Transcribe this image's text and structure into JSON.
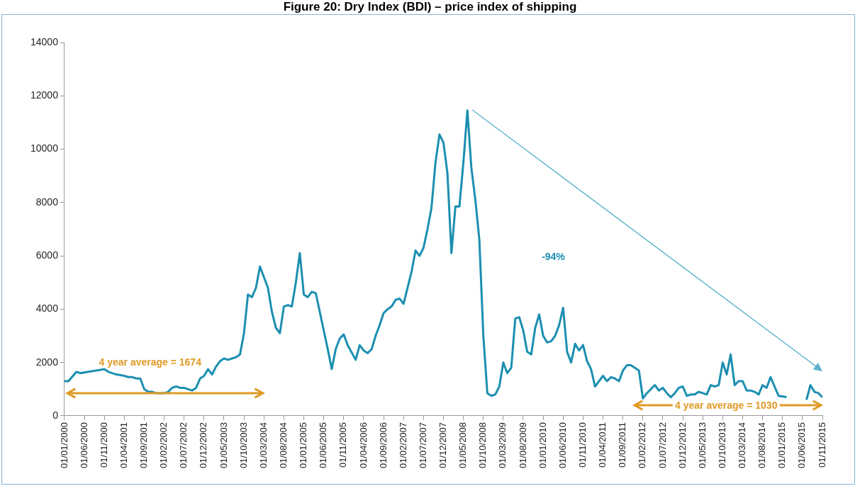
{
  "chart_data": {
    "type": "line",
    "title": "Figure 20: Dry Index (BDI) – price index of shipping",
    "x": [
      "2000-01",
      "2000-02",
      "2000-04",
      "2000-05",
      "2000-07",
      "2000-09",
      "2000-11",
      "2000-12",
      "2001-02",
      "2001-04",
      "2001-05",
      "2001-06",
      "2001-07",
      "2001-08",
      "2001-09",
      "2001-10",
      "2001-11",
      "2001-12",
      "2002-02",
      "2002-03",
      "2002-04",
      "2002-05",
      "2002-06",
      "2002-07",
      "2002-08",
      "2002-09",
      "2002-10",
      "2002-11",
      "2002-12",
      "2003-01",
      "2003-02",
      "2003-03",
      "2003-04",
      "2003-05",
      "2003-06",
      "2003-07",
      "2003-08",
      "2003-09",
      "2003-10",
      "2003-11",
      "2003-12",
      "2004-01",
      "2004-02",
      "2004-03",
      "2004-04",
      "2004-05",
      "2004-06",
      "2004-07",
      "2004-08",
      "2004-09",
      "2004-10",
      "2004-11",
      "2004-12",
      "2005-01",
      "2005-02",
      "2005-03",
      "2005-04",
      "2005-05",
      "2005-06",
      "2005-07",
      "2005-08",
      "2005-09",
      "2005-10",
      "2005-11",
      "2005-12",
      "2006-02",
      "2006-03",
      "2006-04",
      "2006-05",
      "2006-06",
      "2006-07",
      "2006-08",
      "2006-09",
      "2006-10",
      "2006-11",
      "2006-12",
      "2007-01",
      "2007-02",
      "2007-03",
      "2007-04",
      "2007-05",
      "2007-06",
      "2007-07",
      "2007-08",
      "2007-09",
      "2007-10",
      "2007-11",
      "2007-12",
      "2008-01",
      "2008-02",
      "2008-03",
      "2008-04",
      "2008-05",
      "2008-06",
      "2008-07",
      "2008-08",
      "2008-09",
      "2008-10",
      "2008-11",
      "2008-12",
      "2009-01",
      "2009-02",
      "2009-03",
      "2009-04",
      "2009-05",
      "2009-06",
      "2009-07",
      "2009-08",
      "2009-09",
      "2009-10",
      "2009-11",
      "2009-12",
      "2010-01",
      "2010-02",
      "2010-03",
      "2010-04",
      "2010-05",
      "2010-06",
      "2010-07",
      "2010-08",
      "2010-09",
      "2010-10",
      "2010-11",
      "2010-12",
      "2011-01",
      "2011-02",
      "2011-03",
      "2011-04",
      "2011-05",
      "2011-06",
      "2011-07",
      "2011-08",
      "2011-09",
      "2011-10",
      "2011-11",
      "2011-12",
      "2012-01",
      "2012-02",
      "2012-03",
      "2012-04",
      "2012-05",
      "2012-06",
      "2012-07",
      "2012-08",
      "2012-09",
      "2012-10",
      "2012-11",
      "2012-12",
      "2013-01",
      "2013-02",
      "2013-03",
      "2013-04",
      "2013-05",
      "2013-06",
      "2013-07",
      "2013-08",
      "2013-09",
      "2013-10",
      "2013-11",
      "2013-12",
      "2014-01",
      "2014-02",
      "2014-03",
      "2014-04",
      "2014-05",
      "2014-06",
      "2014-07",
      "2014-08",
      "2014-09",
      "2014-10",
      "2014-11",
      "2014-12",
      "2015-02",
      "2015-04",
      "2015-07",
      "2015-08",
      "2015-09",
      "2015-10",
      "2015-11"
    ],
    "series": [
      {
        "color": "#1b8fb0",
        "values": [
          1300,
          1300,
          1650,
          1600,
          1650,
          1700,
          1750,
          1650,
          1550,
          1500,
          1450,
          1450,
          1400,
          1400,
          1000,
          900,
          900,
          850,
          850,
          900,
          1050,
          1100,
          1050,
          1050,
          1000,
          950,
          1050,
          1400,
          1500,
          1750,
          1550,
          1850,
          2050,
          2150,
          2100,
          2150,
          2200,
          2300,
          3100,
          4550,
          4450,
          4800,
          5600,
          5200,
          4800,
          3900,
          3300,
          3100,
          4100,
          4150,
          4100,
          5000,
          6100,
          4550,
          4450,
          4650,
          4600,
          3900,
          3200,
          2500,
          1750,
          2500,
          2900,
          3050,
          2650,
          2100,
          2650,
          2450,
          2350,
          2500,
          3000,
          3400,
          3850,
          4000,
          4100,
          4350,
          4400,
          4200,
          4800,
          5400,
          6200,
          6000,
          6300,
          7000,
          7800,
          9500,
          10550,
          10250,
          9100,
          6100,
          7850,
          7850,
          9500,
          11450,
          9300,
          8100,
          6600,
          3000,
          850,
          750,
          800,
          1100,
          2000,
          1600,
          1800,
          3650,
          3700,
          3200,
          2400,
          2300,
          3300,
          3800,
          3000,
          2750,
          2800,
          3000,
          3400,
          4050,
          2400,
          2000,
          2700,
          2450,
          2650,
          2050,
          1750,
          1100,
          1300,
          1500,
          1300,
          1450,
          1400,
          1300,
          1700,
          1900,
          1900,
          1800,
          1700,
          650,
          850,
          1000,
          1150,
          950,
          1050,
          850,
          700,
          850,
          1050,
          1100,
          750,
          800,
          800,
          900,
          850,
          800,
          1150,
          1100,
          1150,
          2000,
          1550,
          2300,
          1150,
          1300,
          1300,
          950,
          950,
          900,
          800,
          1150,
          1050,
          1450,
          1100,
          750,
          700,
          null,
          600,
          1150,
          900,
          850,
          700
        ]
      }
    ],
    "xlim": [
      "2000-01",
      "2015-11"
    ],
    "xticks": [
      {
        "value": "2000-01",
        "label": "01/01/2000"
      },
      {
        "value": "2000-06",
        "label": "01/06/2000"
      },
      {
        "value": "2000-11",
        "label": "01/11/2000"
      },
      {
        "value": "2001-04",
        "label": "01/04/2001"
      },
      {
        "value": "2001-09",
        "label": "01/09/2001"
      },
      {
        "value": "2002-02",
        "label": "01/02/2002"
      },
      {
        "value": "2002-07",
        "label": "01/07/2002"
      },
      {
        "value": "2002-12",
        "label": "01/12/2002"
      },
      {
        "value": "2003-05",
        "label": "01/05/2003"
      },
      {
        "value": "2003-10",
        "label": "01/10/2003"
      },
      {
        "value": "2004-03",
        "label": "01/03/2004"
      },
      {
        "value": "2004-08",
        "label": "01/08/2004"
      },
      {
        "value": "2005-01",
        "label": "01/01/2005"
      },
      {
        "value": "2005-06",
        "label": "01/06/2005"
      },
      {
        "value": "2005-11",
        "label": "01/11/2005"
      },
      {
        "value": "2006-04",
        "label": "01/04/2006"
      },
      {
        "value": "2006-09",
        "label": "01/09/2006"
      },
      {
        "value": "2007-02",
        "label": "01/02/2007"
      },
      {
        "value": "2007-07",
        "label": "01/07/2007"
      },
      {
        "value": "2007-12",
        "label": "01/12/2007"
      },
      {
        "value": "2008-05",
        "label": "01/05/2008"
      },
      {
        "value": "2008-10",
        "label": "01/10/2008"
      },
      {
        "value": "2009-03",
        "label": "01/03/2009"
      },
      {
        "value": "2009-08",
        "label": "01/08/2009"
      },
      {
        "value": "2010-01",
        "label": "01/01/2010"
      },
      {
        "value": "2010-06",
        "label": "01/06/2010"
      },
      {
        "value": "2010-11",
        "label": "01/11/2010"
      },
      {
        "value": "2011-04",
        "label": "01/04/2011"
      },
      {
        "value": "2011-09",
        "label": "01/09/2011"
      },
      {
        "value": "2012-02",
        "label": "01/02/2012"
      },
      {
        "value": "2012-07",
        "label": "01/07/2012"
      },
      {
        "value": "2012-12",
        "label": "01/12/2012"
      },
      {
        "value": "2013-05",
        "label": "01/05/2013"
      },
      {
        "value": "2013-10",
        "label": "01/10/2013"
      },
      {
        "value": "2014-03",
        "label": "01/03/2014"
      },
      {
        "value": "2014-08",
        "label": "01/08/2014"
      },
      {
        "value": "2015-01",
        "label": "01/01/2015"
      },
      {
        "value": "2015-06",
        "label": "01/06/2015"
      },
      {
        "value": "2015-11",
        "label": "01/11/2015"
      }
    ],
    "ylim": [
      0,
      14000
    ],
    "yticks": [
      0,
      2000,
      4000,
      6000,
      8000,
      10000,
      12000,
      14000
    ],
    "grid": false,
    "annotations": [
      "4 year average = 1674",
      "4 year average = 1030",
      "-94%"
    ]
  }
}
